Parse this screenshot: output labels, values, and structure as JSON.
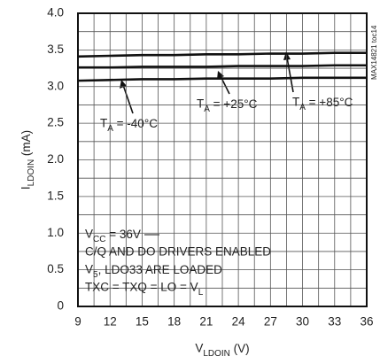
{
  "chart_data": {
    "type": "line",
    "x_label": "VLDOIN (V)",
    "y_label": "ILDOIN (mA)",
    "x": [
      9,
      12,
      15,
      18,
      21,
      24,
      27,
      30,
      33,
      36
    ],
    "series": [
      {
        "name": "TA = -40°C",
        "color": "#111111",
        "values": [
          3.08,
          3.09,
          3.1,
          3.1,
          3.11,
          3.11,
          3.11,
          3.12,
          3.12,
          3.12
        ]
      },
      {
        "name": "TA = +25°C",
        "color": "#111111",
        "values": [
          3.26,
          3.26,
          3.27,
          3.27,
          3.27,
          3.28,
          3.28,
          3.28,
          3.29,
          3.29
        ]
      },
      {
        "name": "TA = +85°C",
        "color": "#111111",
        "values": [
          3.41,
          3.42,
          3.43,
          3.43,
          3.44,
          3.44,
          3.45,
          3.45,
          3.46,
          3.46
        ]
      }
    ],
    "notes": [
      "VCC = 36V",
      "C/Q AND DO DRIVERS ENABLED",
      "V5, LDO33 ARE LOADED",
      "TXC = TXQ = LO = VL"
    ],
    "watermark": "MAX14821 toc14",
    "xlim": [
      9,
      36
    ],
    "xticks": [
      9,
      12,
      15,
      18,
      21,
      24,
      27,
      30,
      33,
      36
    ],
    "ylim": [
      0,
      4
    ],
    "yticks": [
      {
        "value": 0,
        "label": "0"
      },
      {
        "value": 0.5,
        "label": "0.5"
      },
      {
        "value": 1,
        "label": "1.0"
      },
      {
        "value": 1.5,
        "label": "1.5"
      },
      {
        "value": 2,
        "label": "2.0"
      },
      {
        "value": 2.5,
        "label": "2.5"
      },
      {
        "value": 3,
        "label": "3.0"
      },
      {
        "value": 3.5,
        "label": "3.5"
      },
      {
        "value": 4,
        "label": "4.0"
      }
    ],
    "grid": true
  }
}
